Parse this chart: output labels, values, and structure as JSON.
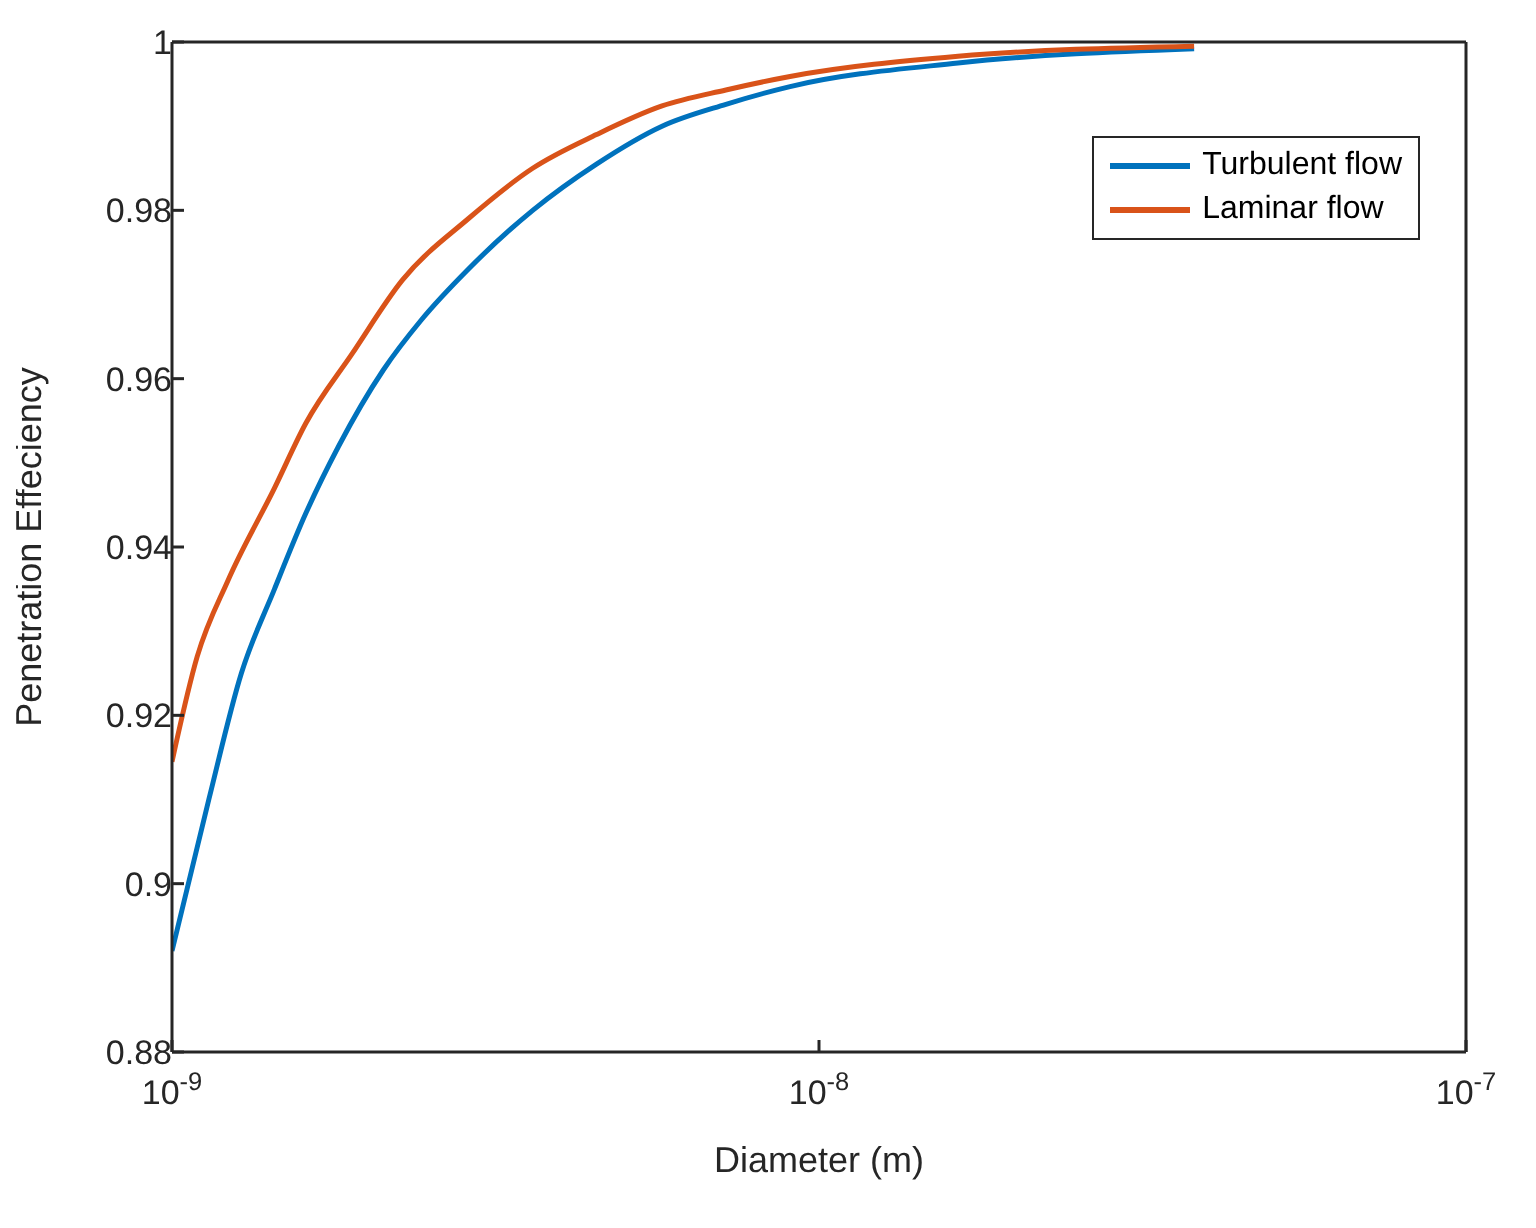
{
  "chart_data": {
    "type": "line",
    "xlabel": "Diameter (m)",
    "ylabel": "Penetration Effeciency",
    "log": "x",
    "xlim": [
      1e-09,
      1e-07
    ],
    "xticks": [
      {
        "value": 1e-09,
        "label": "10$^{-9}$"
      },
      {
        "value": 1e-08,
        "label": "10$^{-8}$"
      },
      {
        "value": 1e-07,
        "label": "10$^{-7}$"
      }
    ],
    "ylim": [
      0.88,
      1
    ],
    "yticks": [
      0.88,
      0.9,
      0.92,
      0.94,
      0.96,
      0.98,
      1
    ],
    "grid": false,
    "legend": "top right",
    "marker": "none",
    "line_style": "solid",
    "series": [
      {
        "name": "Turbulent flow",
        "color": "#0072bd",
        "x": [
          1e-09,
          1.14e-09,
          1.28e-09,
          1.44e-09,
          1.61e-09,
          1.81e-09,
          2.12e-09,
          2.43e-09,
          2.87e-09,
          3.61e-09,
          4.53e-09,
          5.72e-09,
          7.18e-09,
          9.02e-09,
          1.64e-08,
          3.8e-08
        ],
        "values": [
          0.892,
          0.91,
          0.925,
          0.935,
          0.944,
          0.952,
          0.961,
          0.967,
          0.973,
          0.98,
          0.9855,
          0.99,
          0.9926,
          0.9947,
          0.9975,
          0.9992
        ]
      },
      {
        "name": "Laminar flow",
        "color": "#d95319",
        "x": [
          1e-09,
          1.094e-09,
          1.22e-09,
          1.44e-09,
          1.61e-09,
          1.9e-09,
          2.27e-09,
          2.87e-09,
          3.61e-09,
          4.53e-09,
          5.72e-09,
          7.18e-09,
          9.02e-09,
          1.64e-08,
          3.8e-08
        ],
        "values": [
          0.9145,
          0.927,
          0.936,
          0.947,
          0.9547,
          0.963,
          0.9717,
          0.979,
          0.985,
          0.989,
          0.9924,
          0.9943,
          0.9959,
          0.9983,
          0.9995
        ]
      }
    ]
  }
}
